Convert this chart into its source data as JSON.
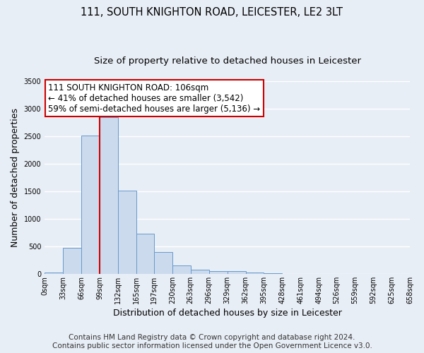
{
  "title_line1": "111, SOUTH KNIGHTON ROAD, LEICESTER, LE2 3LT",
  "title_line2": "Size of property relative to detached houses in Leicester",
  "xlabel": "Distribution of detached houses by size in Leicester",
  "ylabel": "Number of detached properties",
  "bar_color": "#ccdaed",
  "bar_edge_color": "#6699cc",
  "background_color": "#e8eef6",
  "grid_color": "#ffffff",
  "bin_edges": [
    0,
    33,
    66,
    99,
    132,
    165,
    197,
    230,
    263,
    296,
    329,
    362,
    395,
    428,
    461,
    494,
    526,
    559,
    592,
    625,
    658
  ],
  "bin_labels": [
    "0sqm",
    "33sqm",
    "66sqm",
    "99sqm",
    "132sqm",
    "165sqm",
    "197sqm",
    "230sqm",
    "263sqm",
    "296sqm",
    "329sqm",
    "362sqm",
    "395sqm",
    "428sqm",
    "461sqm",
    "494sqm",
    "526sqm",
    "559sqm",
    "592sqm",
    "625sqm",
    "658sqm"
  ],
  "bar_heights": [
    20,
    475,
    2510,
    2840,
    1510,
    735,
    390,
    150,
    80,
    55,
    45,
    30,
    15,
    5,
    0,
    0,
    0,
    0,
    0,
    0
  ],
  "ylim": [
    0,
    3500
  ],
  "yticks": [
    0,
    500,
    1000,
    1500,
    2000,
    2500,
    3000,
    3500
  ],
  "vline_x": 99,
  "vline_color": "#cc0000",
  "annotation_line1": "111 SOUTH KNIGHTON ROAD: 106sqm",
  "annotation_line2": "← 41% of detached houses are smaller (3,542)",
  "annotation_line3": "59% of semi-detached houses are larger (5,136) →",
  "annotation_box_color": "#ffffff",
  "annotation_box_edge_color": "#cc0000",
  "footer_line1": "Contains HM Land Registry data © Crown copyright and database right 2024.",
  "footer_line2": "Contains public sector information licensed under the Open Government Licence v3.0.",
  "title_fontsize": 10.5,
  "subtitle_fontsize": 9.5,
  "annotation_fontsize": 8.5,
  "axis_label_fontsize": 9,
  "tick_fontsize": 7,
  "footer_fontsize": 7.5
}
